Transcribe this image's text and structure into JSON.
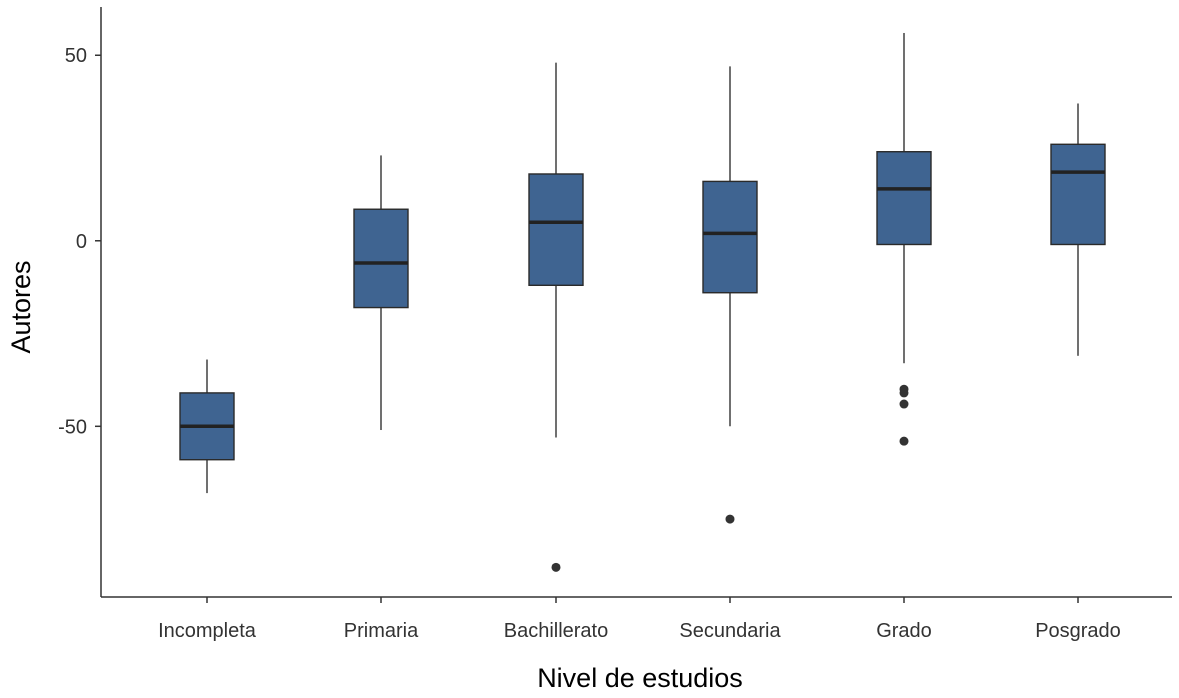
{
  "chart_data": {
    "type": "boxplot",
    "xlabel": "Nivel de estudios",
    "ylabel": "Autores",
    "ylim": [
      -96,
      63
    ],
    "yticks": [
      "50",
      "0",
      "-50"
    ],
    "grid": false,
    "box_color": "#3f6491",
    "categories": [
      "Incompleta",
      "Primaria",
      "Bachillerato",
      "Secundaria",
      "Grado",
      "Posgrado"
    ],
    "boxes": [
      {
        "whisker_low": -68,
        "q1": -59,
        "median": -50,
        "q3": -41,
        "whisker_high": -32,
        "outliers": []
      },
      {
        "whisker_low": -51,
        "q1": -18,
        "median": -6,
        "q3": 8.5,
        "whisker_high": 23,
        "outliers": []
      },
      {
        "whisker_low": -53,
        "q1": -12,
        "median": 5,
        "q3": 18,
        "whisker_high": 48,
        "outliers": [
          -88
        ]
      },
      {
        "whisker_low": -50,
        "q1": -14,
        "median": 2,
        "q3": 16,
        "whisker_high": 47,
        "outliers": [
          -75
        ]
      },
      {
        "whisker_low": -33,
        "q1": -1,
        "median": 14,
        "q3": 24,
        "whisker_high": 56,
        "outliers": [
          -40,
          -41,
          -44,
          -54
        ]
      },
      {
        "whisker_low": -31,
        "q1": -1,
        "median": 18.5,
        "q3": 26,
        "whisker_high": 37,
        "outliers": []
      }
    ]
  }
}
